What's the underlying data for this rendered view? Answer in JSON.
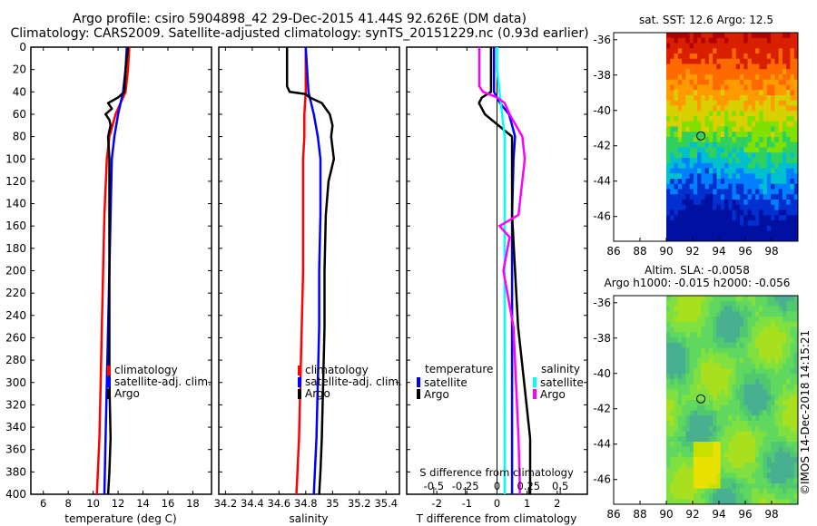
{
  "titles": {
    "line1": "Argo profile: csiro 5904898_42 29-Dec-2015 41.44S 92.626E (DM data)",
    "line2": "Climatology: CARS2009. Satellite-adjusted climatology: synTS_20151229.nc (0.93d earlier)"
  },
  "colors": {
    "climatology": "#ff0000",
    "satellite": "#0000ff",
    "argo": "#000000",
    "sat_salinity": "#00ffff",
    "argo_salinity": "#ff00ff"
  },
  "chart_data": [
    {
      "type": "line",
      "panel": "temperature",
      "xlabel": "temperature (deg C)",
      "xlim": [
        5,
        19.5
      ],
      "xticks": [
        6,
        8,
        10,
        12,
        14,
        16,
        18
      ],
      "ylim": [
        0,
        400
      ],
      "yticks": [
        0,
        20,
        40,
        60,
        80,
        100,
        120,
        140,
        160,
        180,
        200,
        220,
        240,
        260,
        280,
        300,
        320,
        340,
        360,
        380,
        400
      ],
      "legend": [
        "climatology",
        "satellite-adj. clim.",
        "Argo"
      ],
      "series": [
        {
          "name": "climatology",
          "depth": [
            0,
            20,
            40,
            60,
            80,
            100,
            150,
            200,
            250,
            300,
            350,
            400
          ],
          "values": [
            12.9,
            12.8,
            12.6,
            11.8,
            11.3,
            11.1,
            10.9,
            10.8,
            10.7,
            10.6,
            10.5,
            10.3
          ]
        },
        {
          "name": "satellite-adj. clim.",
          "depth": [
            0,
            20,
            40,
            60,
            80,
            100,
            150,
            200,
            250,
            300,
            350,
            400
          ],
          "values": [
            12.7,
            12.6,
            12.4,
            12.0,
            11.7,
            11.5,
            11.4,
            11.3,
            11.2,
            11.1,
            11.0,
            10.9
          ]
        },
        {
          "name": "Argo",
          "depth": [
            0,
            20,
            40,
            45,
            50,
            55,
            60,
            65,
            70,
            80,
            100,
            150,
            200,
            250,
            300,
            350,
            380,
            400
          ],
          "values": [
            12.8,
            12.6,
            12.5,
            12.0,
            11.2,
            11.5,
            11.0,
            11.3,
            11.4,
            11.2,
            11.3,
            11.3,
            11.3,
            11.3,
            11.3,
            11.4,
            11.3,
            11.2
          ]
        }
      ]
    },
    {
      "type": "line",
      "panel": "salinity",
      "xlabel": "salinity",
      "xlim": [
        34.15,
        35.5
      ],
      "xticks": [
        34.2,
        34.4,
        34.6,
        34.8,
        35,
        35.2,
        35.4
      ],
      "ylim": [
        0,
        400
      ],
      "legend": [
        "climatology",
        "satellite-adj. clim.",
        "Argo"
      ],
      "series": [
        {
          "name": "climatology",
          "depth": [
            0,
            20,
            40,
            60,
            80,
            100,
            150,
            200,
            250,
            300,
            350,
            400
          ],
          "values": [
            34.8,
            34.8,
            34.8,
            34.79,
            34.79,
            34.78,
            34.78,
            34.78,
            34.77,
            34.76,
            34.75,
            34.73
          ]
        },
        {
          "name": "satellite-adj. clim.",
          "depth": [
            0,
            20,
            40,
            60,
            80,
            100,
            150,
            200,
            250,
            300,
            350,
            400
          ],
          "values": [
            34.8,
            34.81,
            34.82,
            34.86,
            34.89,
            34.91,
            34.91,
            34.9,
            34.9,
            34.89,
            34.88,
            34.86
          ]
        },
        {
          "name": "Argo",
          "depth": [
            0,
            20,
            35,
            40,
            42,
            45,
            50,
            60,
            70,
            80,
            100,
            120,
            150,
            200,
            250,
            300,
            350,
            380,
            400
          ],
          "values": [
            34.66,
            34.66,
            34.66,
            34.68,
            34.8,
            34.83,
            34.92,
            34.98,
            35.0,
            34.99,
            35.01,
            34.97,
            34.95,
            34.94,
            34.94,
            34.93,
            34.92,
            34.91,
            34.9
          ]
        }
      ]
    },
    {
      "type": "line",
      "panel": "difference",
      "xlabel": "T difference from climatology",
      "xlabel_top": "S difference from climatology",
      "xlim": [
        -3,
        3
      ],
      "xticks": [
        -2,
        -1,
        0,
        1,
        2
      ],
      "sticks_labels": [
        "-0.5",
        "-0.25",
        "0",
        "0.25",
        "0.5"
      ],
      "sticks_values": [
        -0.5,
        -0.25,
        0,
        0.25,
        0.5
      ],
      "ylim": [
        0,
        400
      ],
      "legend_temperature": [
        "temperature",
        "satellite",
        "Argo"
      ],
      "legend_salinity": [
        "salinity",
        "satellite",
        "Argo"
      ],
      "series": [
        {
          "name": "temperature satellite",
          "depth": [
            0,
            20,
            40,
            50,
            60,
            80,
            100,
            150,
            200,
            250,
            300,
            350,
            400
          ],
          "values": [
            -0.1,
            -0.1,
            -0.1,
            0.1,
            0.4,
            0.6,
            0.55,
            0.5,
            0.5,
            0.5,
            0.5,
            0.5,
            0.5
          ]
        },
        {
          "name": "temperature Argo",
          "depth": [
            0,
            20,
            40,
            45,
            50,
            60,
            80,
            100,
            150,
            200,
            250,
            300,
            350,
            380,
            400
          ],
          "values": [
            -0.2,
            -0.2,
            -0.2,
            -0.5,
            -0.6,
            -0.4,
            0.5,
            0.5,
            0.5,
            0.6,
            0.7,
            0.9,
            1.1,
            1.1,
            1.1
          ]
        },
        {
          "name": "salinity satellite",
          "depth": [
            0,
            20,
            40,
            60,
            80,
            100,
            150,
            200,
            250,
            300,
            350,
            400
          ],
          "values": [
            0.0,
            0.0,
            0.02,
            0.04,
            0.06,
            0.06,
            0.06,
            0.06,
            0.06,
            0.06,
            0.06,
            0.06
          ]
        },
        {
          "name": "salinity Argo",
          "depth": [
            0,
            20,
            35,
            40,
            45,
            50,
            60,
            80,
            100,
            150,
            160,
            170,
            200,
            250,
            300,
            350,
            390,
            400
          ],
          "values": [
            -0.14,
            -0.14,
            -0.14,
            -0.11,
            0.0,
            0.06,
            0.1,
            0.2,
            0.22,
            0.17,
            0.02,
            0.1,
            0.05,
            0.13,
            0.15,
            0.17,
            0.18,
            0.18
          ]
        }
      ]
    },
    {
      "type": "heatmap",
      "panel": "sst_map",
      "title": "sat. SST: 12.6 Argo: 12.5",
      "xlim": [
        86,
        100
      ],
      "xticks": [
        86,
        88,
        90,
        92,
        94,
        96,
        98
      ],
      "ylim": [
        -47.4,
        -35.6
      ],
      "yticks": [
        -36,
        -38,
        -40,
        -42,
        -44,
        -46
      ],
      "marker": {
        "lon": 92.626,
        "lat": -41.44
      }
    },
    {
      "type": "heatmap",
      "panel": "sla_map",
      "title_line1": "Altim. SLA: -0.0058",
      "title_line2": "Argo h1000: -0.015 h2000: -0.056",
      "xlim": [
        86,
        100
      ],
      "xticks": [
        86,
        88,
        90,
        92,
        94,
        96,
        98
      ],
      "ylim": [
        -47.4,
        -35.6
      ],
      "yticks": [
        -36,
        -38,
        -40,
        -42,
        -44,
        -46
      ],
      "marker": {
        "lon": 92.626,
        "lat": -41.44
      }
    }
  ],
  "watermark": "©IMOS 14-Dec-2018 14:15:21"
}
